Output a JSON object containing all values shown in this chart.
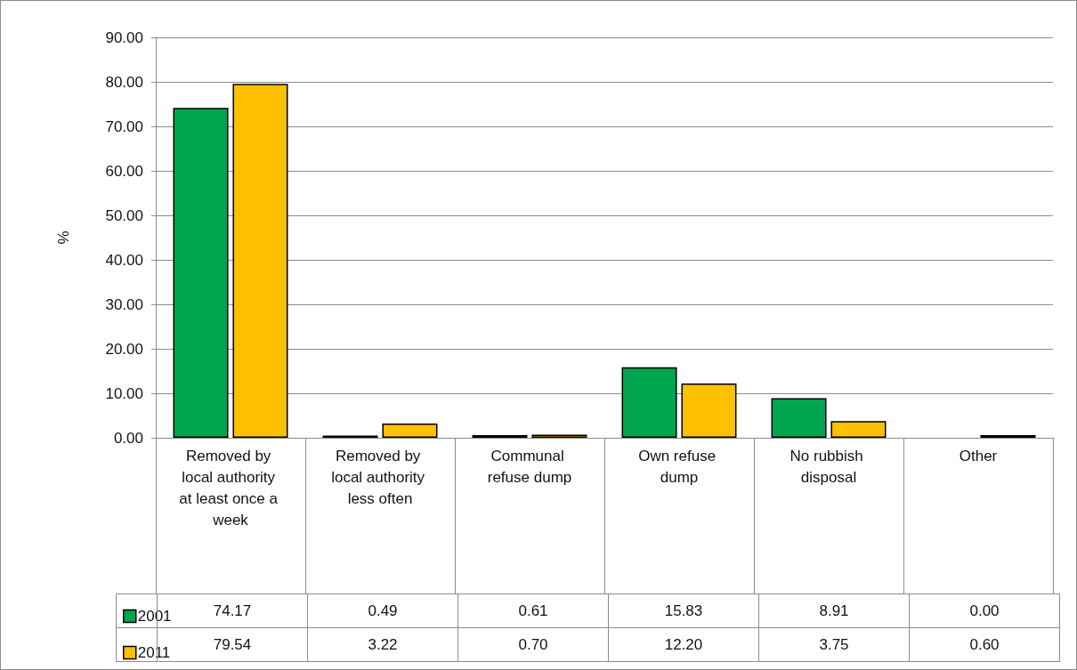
{
  "chart_data": {
    "type": "bar",
    "ylabel": "%",
    "categories": [
      "Removed by local authority at least once a week",
      "Removed by local authority less often",
      "Communal refuse dump",
      "Own refuse dump",
      "No rubbish disposal",
      "Other"
    ],
    "series": [
      {
        "name": "2001",
        "color": "#00a550",
        "values": [
          74.17,
          0.49,
          0.61,
          15.83,
          8.91,
          0.0
        ],
        "value_labels": [
          "74.17",
          "0.49",
          "0.61",
          "15.83",
          "8.91",
          "0.00"
        ]
      },
      {
        "name": "2011",
        "color": "#ffc000",
        "values": [
          79.54,
          3.22,
          0.7,
          12.2,
          3.75,
          0.6
        ],
        "value_labels": [
          "79.54",
          "3.22",
          "0.70",
          "12.20",
          "3.75",
          "0.60"
        ]
      }
    ],
    "ylim": [
      0,
      90
    ],
    "yticks": [
      {
        "value": 0,
        "label": "0.00"
      },
      {
        "value": 10,
        "label": "10.00"
      },
      {
        "value": 20,
        "label": "20.00"
      },
      {
        "value": 30,
        "label": "30.00"
      },
      {
        "value": 40,
        "label": "40.00"
      },
      {
        "value": 50,
        "label": "50.00"
      },
      {
        "value": 60,
        "label": "60.00"
      },
      {
        "value": 70,
        "label": "70.00"
      },
      {
        "value": 80,
        "label": "80.00"
      },
      {
        "value": 90,
        "label": "90.00"
      }
    ],
    "grid": "y",
    "legend": "bottom left"
  }
}
